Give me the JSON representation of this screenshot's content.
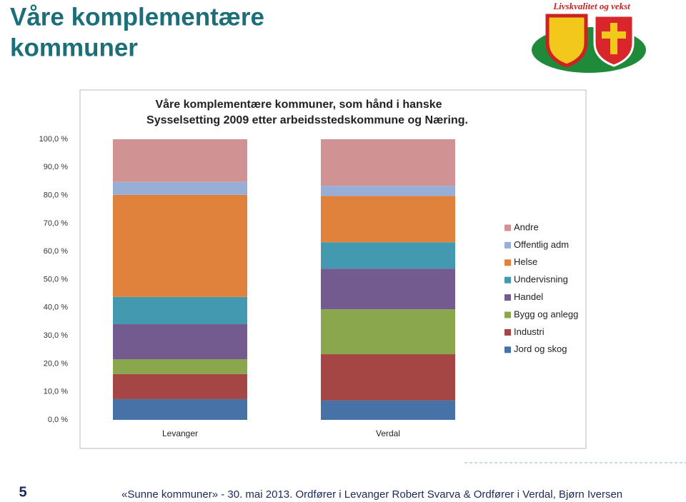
{
  "slide": {
    "title": [
      "Våre komplementære",
      "kommuner"
    ],
    "logo_text": "Livskvalitet og vekst",
    "page_number": "5",
    "footer": "«Sunne kommuner» - 30. mai 2013. Ordfører i Levanger Robert Svarva & Ordfører i Verdal, Bjørn Iversen"
  },
  "chart_data": {
    "type": "stacked_bar",
    "title": "Våre komplementære kommuner, som hånd i hanske",
    "subtitle": "Sysselsetting 2009 etter arbeidsstedskommune og Næring.",
    "categories": [
      "Levanger",
      "Verdal"
    ],
    "series": [
      {
        "name": "Jord og skog",
        "color": "#4672a8",
        "values": [
          7.4,
          6.9
        ]
      },
      {
        "name": "Industri",
        "color": "#a64644",
        "values": [
          8.9,
          16.5
        ]
      },
      {
        "name": "Bygg og anlegg",
        "color": "#8ba74e",
        "values": [
          5.3,
          16.0
        ]
      },
      {
        "name": "Handel",
        "color": "#735b8f",
        "values": [
          12.5,
          14.5
        ]
      },
      {
        "name": "Undervisning",
        "color": "#4299b0",
        "values": [
          9.7,
          9.4
        ]
      },
      {
        "name": "Helse",
        "color": "#e0823c",
        "values": [
          36.4,
          16.5
        ]
      },
      {
        "name": "Offentlig adm",
        "color": "#97afd6",
        "values": [
          4.6,
          3.6
        ]
      },
      {
        "name": "Andre",
        "color": "#d09293",
        "values": [
          15.2,
          16.6
        ]
      }
    ],
    "ylim": [
      0,
      100
    ],
    "yticks": [
      {
        "value": 0,
        "label": "0,0 %"
      },
      {
        "value": 10,
        "label": "10,0 %"
      },
      {
        "value": 20,
        "label": "20,0 %"
      },
      {
        "value": 30,
        "label": "30,0 %"
      },
      {
        "value": 40,
        "label": "40,0 %"
      },
      {
        "value": 50,
        "label": "50,0 %"
      },
      {
        "value": 60,
        "label": "60,0 %"
      },
      {
        "value": 70,
        "label": "70,0 %"
      },
      {
        "value": 80,
        "label": "80,0 %"
      },
      {
        "value": 90,
        "label": "90,0 %"
      },
      {
        "value": 100,
        "label": "100,0 %"
      }
    ],
    "grid": false,
    "legend": "right"
  }
}
